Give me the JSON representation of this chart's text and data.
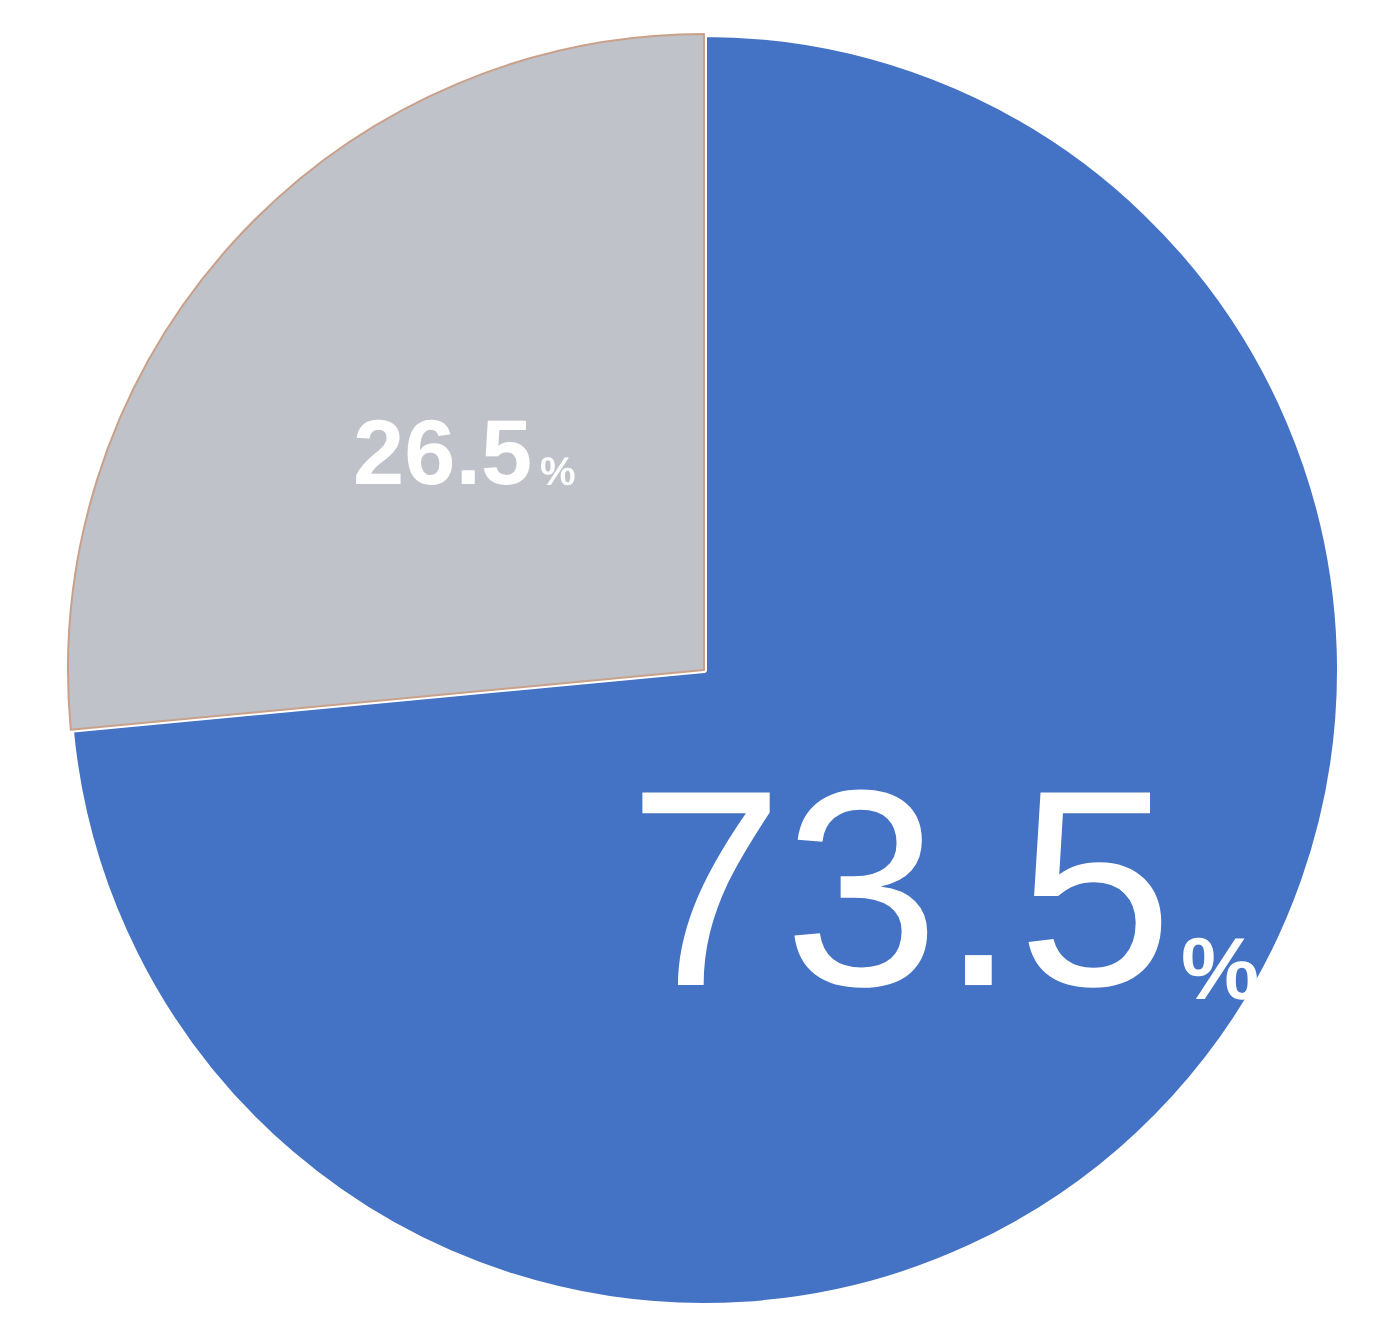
{
  "chart_data": {
    "type": "pie",
    "categories": [
      null,
      null
    ],
    "values": [
      73.5,
      26.5
    ],
    "colors": [
      "#4472c4",
      "#bfc3c9"
    ],
    "value_labels": [
      "73.5%",
      "26.5%"
    ]
  }
}
